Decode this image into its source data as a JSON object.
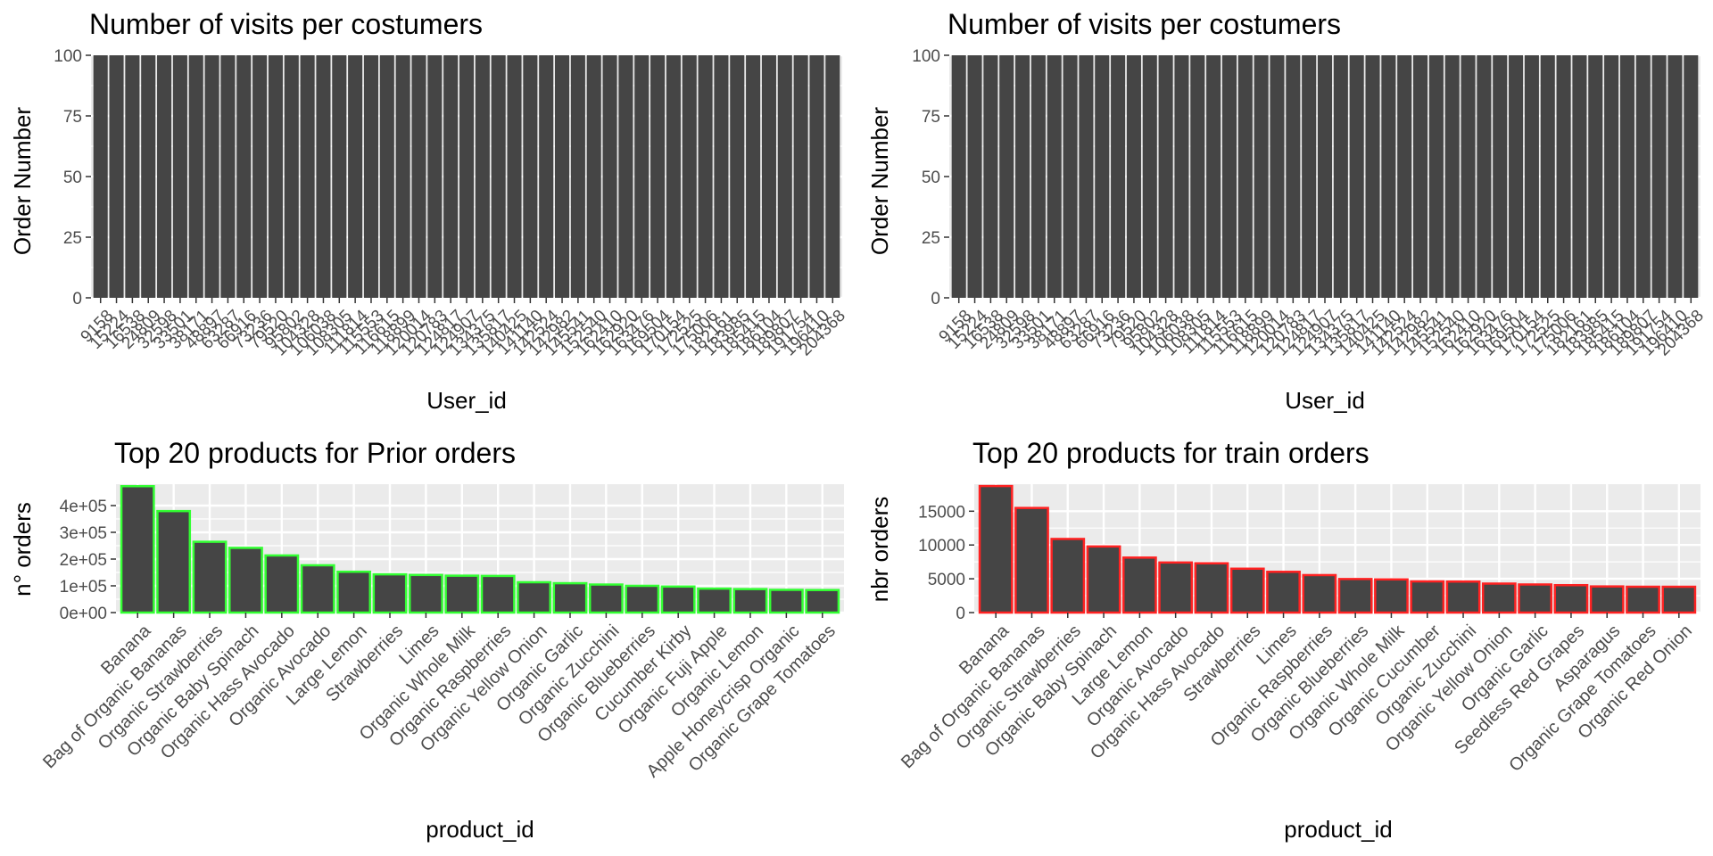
{
  "figure": {
    "background": "#ffffff"
  },
  "chart_data": [
    {
      "type": "bar",
      "title": "Number of visits per costumers",
      "xlabel": "User_id",
      "ylabel": "Order Number",
      "ylim": [
        0,
        100
      ],
      "yticks": [
        0,
        25,
        50,
        75,
        100
      ],
      "ytick_labels": [
        "0",
        "25",
        "50",
        "75",
        "100"
      ],
      "categories": [
        "9158",
        "15224",
        "16538",
        "24809",
        "32598",
        "33501",
        "38171",
        "48897",
        "63287",
        "66916",
        "73236",
        "79520",
        "95802",
        "104328",
        "106038",
        "108305",
        "111814",
        "115553",
        "116615",
        "118899",
        "120014",
        "120783",
        "124817",
        "124907",
        "134375",
        "135817",
        "140425",
        "141140",
        "142524",
        "142982",
        "145541",
        "152540",
        "162410",
        "162920",
        "163476",
        "169504",
        "170154",
        "172525",
        "175006",
        "182161",
        "183985",
        "185415",
        "186104",
        "189807",
        "191754",
        "196410",
        "204368"
      ],
      "values": [
        100,
        100,
        100,
        100,
        100,
        100,
        100,
        100,
        100,
        100,
        100,
        100,
        100,
        100,
        100,
        100,
        100,
        100,
        100,
        100,
        100,
        100,
        100,
        100,
        100,
        100,
        100,
        100,
        100,
        100,
        100,
        100,
        100,
        100,
        100,
        100,
        100,
        100,
        100,
        100,
        100,
        100,
        100,
        100,
        100,
        100,
        100
      ],
      "bar_fill": "#454545",
      "bar_outline": "none",
      "panel_bg": "#ebebeb",
      "grid": true
    },
    {
      "type": "bar",
      "title": "Number of visits per costumers",
      "xlabel": "User_id",
      "ylabel": "Order Number",
      "ylim": [
        0,
        100
      ],
      "yticks": [
        0,
        25,
        50,
        75,
        100
      ],
      "ytick_labels": [
        "0",
        "25",
        "50",
        "75",
        "100"
      ],
      "categories": [
        "9158",
        "15224",
        "16538",
        "24809",
        "32598",
        "33501",
        "38171",
        "48897",
        "63287",
        "66916",
        "73236",
        "79520",
        "95802",
        "104328",
        "106038",
        "108305",
        "111814",
        "115553",
        "116615",
        "118899",
        "120014",
        "120783",
        "124817",
        "124907",
        "134375",
        "135817",
        "140425",
        "141140",
        "142524",
        "142982",
        "145541",
        "152540",
        "162410",
        "162920",
        "163476",
        "169504",
        "170154",
        "172525",
        "175006",
        "182161",
        "183985",
        "185415",
        "186104",
        "189807",
        "191754",
        "196410",
        "204368"
      ],
      "values": [
        100,
        100,
        100,
        100,
        100,
        100,
        100,
        100,
        100,
        100,
        100,
        100,
        100,
        100,
        100,
        100,
        100,
        100,
        100,
        100,
        100,
        100,
        100,
        100,
        100,
        100,
        100,
        100,
        100,
        100,
        100,
        100,
        100,
        100,
        100,
        100,
        100,
        100,
        100,
        100,
        100,
        100,
        100,
        100,
        100,
        100,
        100
      ],
      "bar_fill": "#454545",
      "bar_outline": "none",
      "panel_bg": "#ebebeb",
      "grid": true
    },
    {
      "type": "bar",
      "title": "Top 20 products for Prior orders",
      "xlabel": "product_id",
      "ylabel": "n° orders",
      "ylim": [
        0,
        480000
      ],
      "yticks": [
        0,
        100000,
        200000,
        300000,
        400000
      ],
      "ytick_labels": [
        "0e+00",
        "1e+05",
        "2e+05",
        "3e+05",
        "4e+05"
      ],
      "categories": [
        "Banana",
        "Bag of Organic Bananas",
        "Organic Strawberries",
        "Organic Baby Spinach",
        "Organic Hass Avocado",
        "Organic Avocado",
        "Large Lemon",
        "Strawberries",
        "Limes",
        "Organic Whole Milk",
        "Organic Raspberries",
        "Organic Yellow Onion",
        "Organic Garlic",
        "Organic Zucchini",
        "Organic Blueberries",
        "Cucumber Kirby",
        "Organic Fuji Apple",
        "Organic Lemon",
        "Apple Honeycrisp Organic",
        "Organic Grape Tomatoes"
      ],
      "values": [
        472565,
        379450,
        264683,
        241921,
        213584,
        176815,
        152657,
        142951,
        140627,
        137905,
        137057,
        113426,
        109778,
        104823,
        100060,
        97315,
        89632,
        87746,
        85020,
        84255
      ],
      "bar_fill": "#454545",
      "bar_outline": "#33ff33",
      "panel_bg": "#ebebeb",
      "grid": true
    },
    {
      "type": "bar",
      "title": "Top 20 products for train orders",
      "xlabel": "product_id",
      "ylabel": "nbr orders",
      "ylim": [
        0,
        19000
      ],
      "yticks": [
        0,
        5000,
        10000,
        15000
      ],
      "ytick_labels": [
        "0",
        "5000",
        "10000",
        "15000"
      ],
      "categories": [
        "Banana",
        "Bag of Organic Bananas",
        "Organic Strawberries",
        "Organic Baby Spinach",
        "Large Lemon",
        "Organic Avocado",
        "Organic Hass Avocado",
        "Strawberries",
        "Limes",
        "Organic Raspberries",
        "Organic Blueberries",
        "Organic Whole Milk",
        "Organic Cucumber",
        "Organic Zucchini",
        "Organic Yellow Onion",
        "Organic Garlic",
        "Seedless Red Grapes",
        "Asparagus",
        "Organic Grape Tomatoes",
        "Organic Red Onion"
      ],
      "values": [
        18726,
        15480,
        10894,
        9784,
        8135,
        7409,
        7293,
        6494,
        6033,
        5546,
        4966,
        4908,
        4613,
        4589,
        4290,
        4158,
        4059,
        3868,
        3823,
        3818
      ],
      "bar_fill": "#454545",
      "bar_outline": "#ff2222",
      "panel_bg": "#ebebeb",
      "grid": true
    }
  ]
}
